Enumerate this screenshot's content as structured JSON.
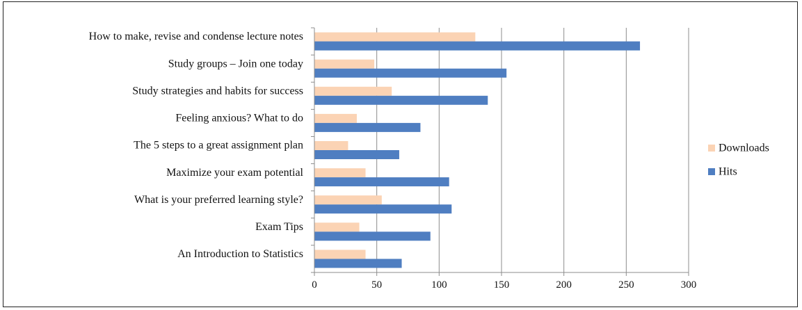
{
  "chart_data": {
    "type": "bar",
    "orientation": "horizontal",
    "categories": [
      "How to make, revise and condense lecture notes",
      "Study groups – Join one today",
      "Study strategies and habits for success",
      "Feeling anxious? What to do",
      "The 5 steps to a great assignment plan",
      "Maximize your exam potential",
      "What is your preferred learning style?",
      "Exam Tips",
      "An Introduction to Statistics"
    ],
    "series": [
      {
        "name": "Downloads",
        "color": "#fbd3b4",
        "values": [
          129,
          48,
          62,
          34,
          27,
          41,
          54,
          36,
          41
        ]
      },
      {
        "name": "Hits",
        "color": "#4f7ec1",
        "values": [
          261,
          154,
          139,
          85,
          68,
          108,
          110,
          93,
          70
        ]
      }
    ],
    "xlim": [
      0,
      300
    ],
    "x_ticks": [
      "0",
      "50",
      "100",
      "150",
      "200",
      "250",
      "300"
    ],
    "grid": "vertical",
    "legend_position": "right"
  }
}
